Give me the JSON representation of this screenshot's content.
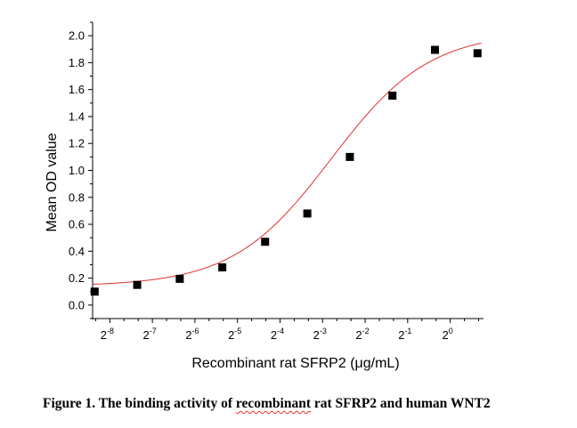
{
  "chart_data": {
    "type": "scatter",
    "xlabel": "Recombinant rat SFRP2 (μg/mL)",
    "ylabel": "Mean OD value",
    "x_scale": "log2",
    "xlim": [
      0.00295,
      1.72
    ],
    "ylim": [
      -0.1,
      2.1
    ],
    "x_ticks": [
      {
        "base": "2",
        "exp": "-8",
        "value": 0.00390625
      },
      {
        "base": "2",
        "exp": "-7",
        "value": 0.0078125
      },
      {
        "base": "2",
        "exp": "-6",
        "value": 0.015625
      },
      {
        "base": "2",
        "exp": "-5",
        "value": 0.03125
      },
      {
        "base": "2",
        "exp": "-4",
        "value": 0.0625
      },
      {
        "base": "2",
        "exp": "-3",
        "value": 0.125
      },
      {
        "base": "2",
        "exp": "-2",
        "value": 0.25
      },
      {
        "base": "2",
        "exp": "-1",
        "value": 0.5
      },
      {
        "base": "2",
        "exp": "0",
        "value": 1
      }
    ],
    "y_ticks": [
      "0.0",
      "0.2",
      "0.4",
      "0.6",
      "0.8",
      "1.0",
      "1.2",
      "1.4",
      "1.6",
      "1.8",
      "2.0"
    ],
    "grid": false,
    "points": {
      "x": [
        0.00305,
        0.0061,
        0.0122,
        0.0244,
        0.049,
        0.0975,
        0.195,
        0.39,
        0.78,
        1.56
      ],
      "y": [
        0.1,
        0.15,
        0.195,
        0.28,
        0.47,
        0.68,
        1.1,
        1.555,
        1.895,
        1.87
      ],
      "color": "#000000",
      "marker": "square"
    },
    "fit": {
      "model": "4PL",
      "bottom": 0.14,
      "top": 2.03,
      "ec50": 0.1436,
      "hill": 1.25,
      "color": "#e03030"
    }
  },
  "caption": {
    "before": "Figure 1. The binding activity of ",
    "underlined": "recombinant",
    "after": " rat SFRP2 and human WNT2"
  }
}
